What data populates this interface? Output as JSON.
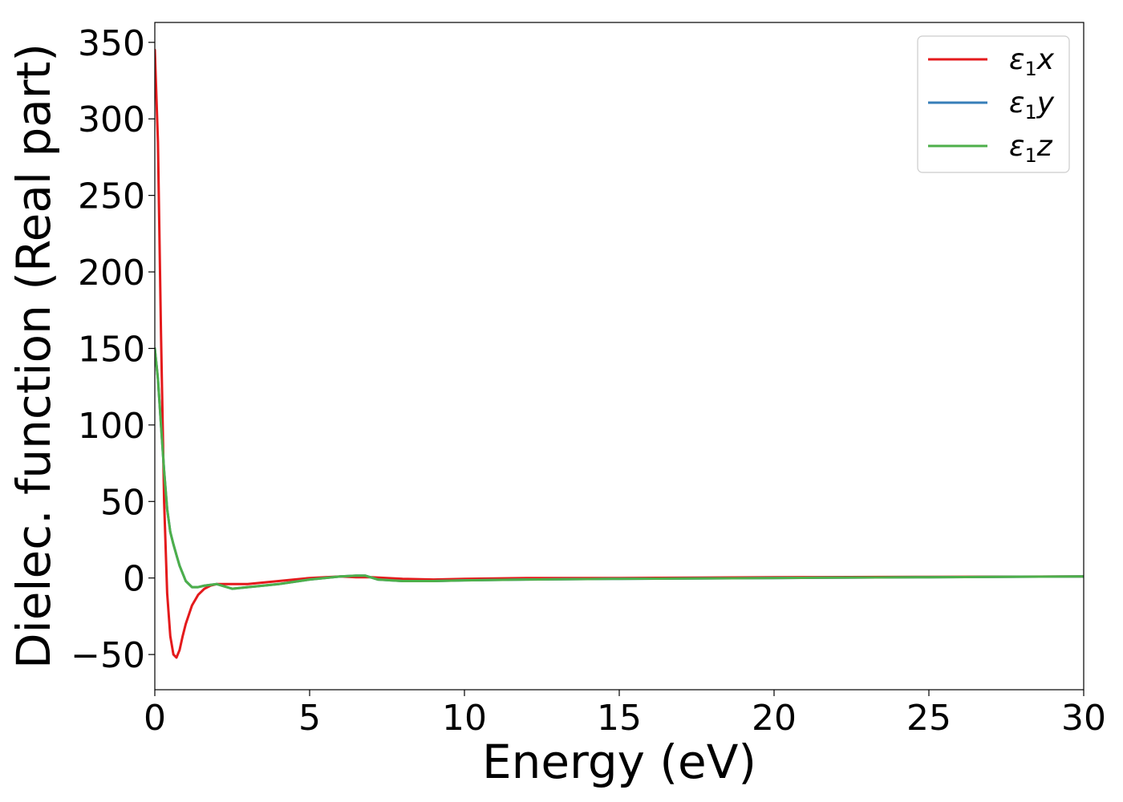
{
  "chart_data": {
    "type": "line",
    "xlabel": "Energy (eV)",
    "ylabel": "Dielec. function (Real part)",
    "xlim": [
      0,
      30
    ],
    "ylim": [
      -73,
      363
    ],
    "xticks": [
      0,
      5,
      10,
      15,
      20,
      25,
      30
    ],
    "yticks": [
      -50,
      0,
      50,
      100,
      150,
      200,
      250,
      300,
      350
    ],
    "xtick_labels": [
      "0",
      "5",
      "10",
      "15",
      "20",
      "25",
      "30"
    ],
    "ytick_labels": [
      "−50",
      "0",
      "50",
      "100",
      "150",
      "200",
      "250",
      "300",
      "350"
    ],
    "grid": false,
    "legend_position": "top-right",
    "series": [
      {
        "name": "ε₁x",
        "legend_main": "ε",
        "legend_sub": "1",
        "legend_tail": "x",
        "color": "#e41a1c",
        "x": [
          0,
          0.1,
          0.2,
          0.3,
          0.4,
          0.5,
          0.6,
          0.7,
          0.8,
          0.9,
          1.0,
          1.2,
          1.4,
          1.6,
          1.8,
          2.0,
          2.5,
          3.0,
          3.5,
          4.0,
          4.5,
          5.0,
          5.5,
          6.0,
          6.5,
          7.0,
          8.0,
          9.0,
          10,
          12,
          15,
          20,
          25,
          30
        ],
        "y": [
          345,
          285,
          160,
          50,
          -10,
          -38,
          -50,
          -52,
          -47,
          -38,
          -30,
          -18,
          -11,
          -7,
          -5,
          -4,
          -4,
          -4,
          -3,
          -2,
          -1,
          0,
          0.5,
          1,
          0.5,
          0.5,
          -0.5,
          -1,
          -0.5,
          0,
          0,
          0.5,
          0.8,
          1
        ]
      },
      {
        "name": "ε₁y",
        "legend_main": "ε",
        "legend_sub": "1",
        "legend_tail": "y",
        "color": "#377eb8",
        "x": [
          0,
          0.1,
          0.2,
          0.3,
          0.4,
          0.5,
          0.6,
          0.7,
          0.8,
          1.0,
          1.2,
          1.4,
          1.6,
          2.0,
          2.5,
          3.0,
          3.5,
          4.0,
          5.0,
          6.0,
          6.5,
          6.8,
          7.2,
          8.0,
          9.0,
          10,
          12,
          15,
          20,
          25,
          30
        ],
        "y": [
          150,
          130,
          100,
          70,
          45,
          30,
          22,
          15,
          8,
          -2,
          -6,
          -6,
          -5,
          -4,
          -7,
          -6,
          -5,
          -4,
          -1,
          1,
          1.5,
          1.5,
          -1,
          -2,
          -2,
          -1.5,
          -1,
          -0.5,
          0,
          0.5,
          1
        ]
      },
      {
        "name": "ε₁z",
        "legend_main": "ε",
        "legend_sub": "1",
        "legend_tail": "z",
        "color": "#4daf4a",
        "x": [
          0,
          0.1,
          0.2,
          0.3,
          0.4,
          0.5,
          0.6,
          0.7,
          0.8,
          1.0,
          1.2,
          1.4,
          1.6,
          2.0,
          2.5,
          3.0,
          3.5,
          4.0,
          5.0,
          6.0,
          6.5,
          6.8,
          7.2,
          8.0,
          9.0,
          10,
          12,
          15,
          20,
          25,
          30
        ],
        "y": [
          150,
          130,
          100,
          70,
          45,
          30,
          22,
          15,
          8,
          -2,
          -6,
          -6,
          -5,
          -4,
          -7,
          -6,
          -5,
          -4,
          -1,
          1,
          1.5,
          1.5,
          -1,
          -2,
          -2,
          -1.5,
          -1,
          -0.5,
          0,
          0.5,
          1
        ]
      }
    ]
  }
}
